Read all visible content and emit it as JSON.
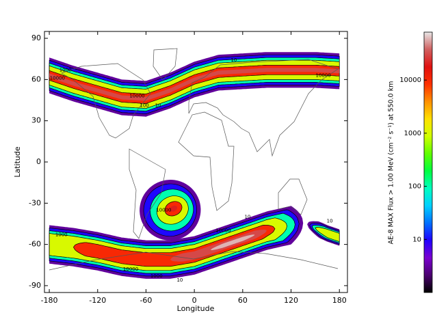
{
  "chart_data": {
    "type": "contour-map",
    "x_label": "Longitude",
    "y_label": "Latitude",
    "colorbar_label": "AE-8 MAX Flux >  1.00 MeV (cm⁻² s⁻¹) at 550.0 km",
    "xlim": [
      -186,
      190
    ],
    "ylim": [
      -95,
      95
    ],
    "xticks": [
      -180,
      -120,
      -60,
      0,
      60,
      120,
      180
    ],
    "yticks": [
      -90,
      -60,
      -30,
      0,
      30,
      60,
      90
    ],
    "clim": [
      1,
      80000
    ],
    "cticks": [
      10,
      100,
      1000,
      10000
    ],
    "colorbar_log": true,
    "colormap": [
      "#000000",
      "#4b0070",
      "#7a00d0",
      "#2000ff",
      "#0070ff",
      "#00d0ff",
      "#00ffc0",
      "#00ff40",
      "#60ff00",
      "#d0ff00",
      "#ffe000",
      "#ff9000",
      "#ff3000",
      "#e01010",
      "#d06060",
      "#e8e8e8"
    ],
    "line_levels": [
      10,
      100,
      1000,
      10000
    ],
    "belts": [
      {
        "lon": [
          -180,
          -150,
          -120,
          -90,
          -60,
          -30,
          0,
          30,
          60,
          90,
          120,
          150,
          180
        ],
        "lat": [
          63,
          57,
          52,
          47,
          46,
          52,
          60,
          65,
          66,
          67,
          67,
          67,
          66
        ]
      },
      {
        "lon": [
          -180,
          -150,
          -120,
          -90,
          -60,
          -30,
          0,
          30,
          60,
          90,
          120,
          140
        ],
        "lat": [
          -60,
          -62,
          -65,
          -69,
          -71,
          -71,
          -68,
          -62,
          -56,
          -50,
          -46,
          -44
        ]
      },
      {
        "lon": [
          135,
          150,
          165,
          180
        ],
        "lat": [
          -44,
          -48,
          -52,
          -55
        ]
      }
    ],
    "belt_contours": [
      {
        "belt": 0,
        "level": 3,
        "lon_range": [
          -180,
          180
        ],
        "half_width": 13
      },
      {
        "belt": 0,
        "level": 10,
        "lon_range": [
          -180,
          180
        ],
        "half_width": 11
      },
      {
        "belt": 0,
        "level": 100,
        "lon_range": [
          -180,
          180
        ],
        "half_width": 9
      },
      {
        "belt": 0,
        "level": 1000,
        "lon_range": [
          -180,
          180
        ],
        "half_width": 7
      },
      {
        "belt": 0,
        "level": 10000,
        "lon_range": [
          -180,
          180
        ],
        "half_width": 3.5
      },
      {
        "belt": 0,
        "level": 30000,
        "lon_range": [
          -180,
          180
        ],
        "half_width": 1.5
      },
      {
        "belt": 1,
        "level": 3,
        "lon_range": [
          -180,
          135
        ],
        "half_width": 14
      },
      {
        "belt": 1,
        "level": 10,
        "lon_range": [
          -180,
          130
        ],
        "half_width": 12
      },
      {
        "belt": 1,
        "level": 100,
        "lon_range": [
          -180,
          125
        ],
        "half_width": 10
      },
      {
        "belt": 1,
        "level": 1000,
        "lon_range": [
          -180,
          115
        ],
        "half_width": 8
      },
      {
        "belt": 1,
        "level": 10000,
        "lon_range": [
          -150,
          100
        ],
        "half_width": 5
      },
      {
        "belt": 1,
        "level": 30000,
        "lon_range": [
          -30,
          90
        ],
        "half_width": 3
      },
      {
        "belt": 1,
        "level": 60000,
        "lon_range": [
          20,
          75
        ],
        "half_width": 1.5
      },
      {
        "belt": 2,
        "level": 3,
        "lon_range": [
          140,
          180
        ],
        "half_width": 6
      },
      {
        "belt": 2,
        "level": 10,
        "lon_range": [
          143,
          180
        ],
        "half_width": 5
      },
      {
        "belt": 2,
        "level": 100,
        "lon_range": [
          146,
          180
        ],
        "half_width": 4
      },
      {
        "belt": 2,
        "level": 1000,
        "lon_range": [
          150,
          180
        ],
        "half_width": 3
      }
    ],
    "oval_contours": [
      {
        "center": [
          -30,
          -35
        ],
        "level": 3,
        "rx": 38,
        "ry": 22
      },
      {
        "center": [
          -30,
          -35
        ],
        "level": 10,
        "rx": 33,
        "ry": 19
      },
      {
        "center": [
          -28,
          -35
        ],
        "level": 100,
        "rx": 27,
        "ry": 15
      },
      {
        "center": [
          -27,
          -35
        ],
        "level": 1000,
        "rx": 20,
        "ry": 10
      },
      {
        "center": [
          -26,
          -34
        ],
        "level": 10000,
        "rx": 11,
        "ry": 5
      },
      {
        "center": [
          -26,
          -34
        ],
        "level": 20000,
        "rx": 5,
        "ry": 2
      }
    ],
    "contour_labels": [
      {
        "value": 10000,
        "lon": -170,
        "lat": 61
      },
      {
        "value": 1000,
        "lon": -160,
        "lat": 67
      },
      {
        "value": 10,
        "lon": 49,
        "lat": 74
      },
      {
        "value": 10000,
        "lon": 160,
        "lat": 63
      },
      {
        "value": 10000,
        "lon": -71,
        "lat": 48
      },
      {
        "value": 100,
        "lon": -62,
        "lat": 41
      },
      {
        "value": 10,
        "lon": -45,
        "lat": 41
      },
      {
        "value": 10000,
        "lon": -38,
        "lat": -35
      },
      {
        "value": 10000,
        "lon": 36,
        "lat": -50
      },
      {
        "value": 10,
        "lon": 66,
        "lat": -40
      },
      {
        "value": 10000,
        "lon": -79,
        "lat": -78
      },
      {
        "value": 1000,
        "lon": -47,
        "lat": -83
      },
      {
        "value": 10,
        "lon": -18,
        "lat": -86
      },
      {
        "value": 1000,
        "lon": -165,
        "lat": -53
      },
      {
        "value": 10,
        "lon": 168,
        "lat": -43
      }
    ]
  }
}
